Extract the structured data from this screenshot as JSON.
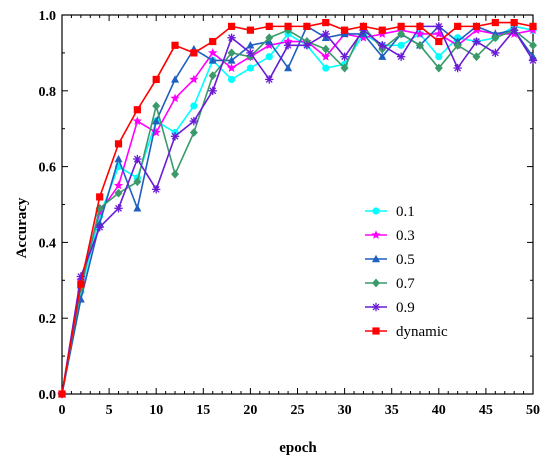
{
  "chart_data": {
    "type": "line",
    "title": "",
    "xlabel": "epoch",
    "ylabel": "Accuracy",
    "xlim": [
      0,
      50
    ],
    "ylim": [
      0.0,
      1.0
    ],
    "xticks": [
      0,
      5,
      10,
      15,
      20,
      25,
      30,
      35,
      40,
      45,
      50
    ],
    "yticks": [
      0.0,
      0.2,
      0.4,
      0.6,
      0.8,
      1.0
    ],
    "ytick_labels": [
      "0.0",
      "0.2",
      "0.4",
      "0.6",
      "0.8",
      "1.0"
    ],
    "grid": false,
    "legend_position": "center-right",
    "x": [
      0,
      2,
      4,
      6,
      8,
      10,
      12,
      14,
      16,
      18,
      20,
      22,
      24,
      26,
      28,
      30,
      32,
      34,
      36,
      38,
      40,
      42,
      44,
      46,
      48,
      50
    ],
    "series": [
      {
        "name": "0.1",
        "color": "#00ffff",
        "marker": "circle",
        "values": [
          0,
          0.27,
          0.47,
          0.6,
          0.57,
          0.72,
          0.69,
          0.76,
          0.88,
          0.83,
          0.86,
          0.89,
          0.95,
          0.92,
          0.86,
          0.87,
          0.95,
          0.92,
          0.92,
          0.95,
          0.89,
          0.94,
          0.93,
          0.94,
          0.97,
          0.96
        ]
      },
      {
        "name": "0.3",
        "color": "#ff00ff",
        "marker": "star",
        "values": [
          0,
          0.3,
          0.48,
          0.55,
          0.72,
          0.69,
          0.78,
          0.83,
          0.9,
          0.86,
          0.89,
          0.92,
          0.93,
          0.93,
          0.89,
          0.95,
          0.94,
          0.95,
          0.96,
          0.95,
          0.95,
          0.92,
          0.96,
          0.95,
          0.95,
          0.96
        ]
      },
      {
        "name": "0.5",
        "color": "#1f5fbf",
        "marker": "triangle",
        "values": [
          0,
          0.25,
          0.45,
          0.62,
          0.49,
          0.72,
          0.83,
          0.91,
          0.88,
          0.88,
          0.92,
          0.93,
          0.86,
          0.97,
          0.94,
          0.95,
          0.95,
          0.89,
          0.95,
          0.92,
          0.97,
          0.93,
          0.97,
          0.95,
          0.96,
          0.89
        ]
      },
      {
        "name": "0.7",
        "color": "#3a9a6a",
        "marker": "diamond",
        "values": [
          0,
          0.28,
          0.49,
          0.53,
          0.56,
          0.76,
          0.58,
          0.69,
          0.84,
          0.9,
          0.89,
          0.94,
          0.96,
          0.93,
          0.91,
          0.86,
          0.97,
          0.91,
          0.95,
          0.92,
          0.86,
          0.92,
          0.89,
          0.94,
          0.96,
          0.92
        ]
      },
      {
        "name": "0.9",
        "color": "#6a1bd6",
        "marker": "asterisk",
        "values": [
          0,
          0.31,
          0.44,
          0.49,
          0.62,
          0.54,
          0.68,
          0.72,
          0.8,
          0.94,
          0.9,
          0.83,
          0.92,
          0.92,
          0.95,
          0.89,
          0.96,
          0.92,
          0.89,
          0.97,
          0.97,
          0.86,
          0.93,
          0.9,
          0.96,
          0.88
        ]
      },
      {
        "name": "dynamic",
        "color": "#ff0000",
        "marker": "square",
        "values": [
          0,
          0.29,
          0.52,
          0.66,
          0.75,
          0.83,
          0.92,
          0.9,
          0.93,
          0.97,
          0.96,
          0.97,
          0.97,
          0.97,
          0.98,
          0.96,
          0.97,
          0.96,
          0.97,
          0.97,
          0.93,
          0.97,
          0.97,
          0.98,
          0.98,
          0.97
        ]
      }
    ]
  }
}
